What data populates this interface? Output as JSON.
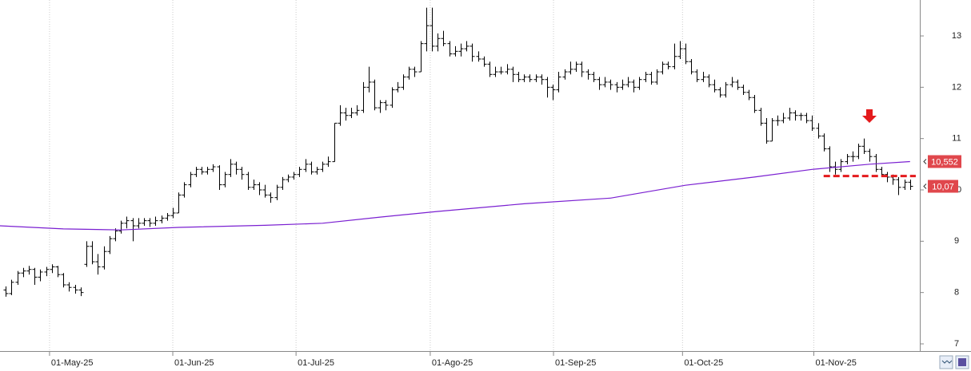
{
  "chart_data": {
    "type": "ohlc",
    "bar_color": "#000000",
    "ylim": [
      6.86,
      13.7
    ],
    "yticks": [
      7,
      8,
      9,
      10,
      11,
      12,
      13
    ],
    "xlim": [
      -1,
      158.7
    ],
    "xticks": [
      {
        "value": 7.6,
        "label": "01-May-25"
      },
      {
        "value": 29,
        "label": "01-Jun-25"
      },
      {
        "value": 50.4,
        "label": "01-Jul-25"
      },
      {
        "value": 73.7,
        "label": "01-Ago-25"
      },
      {
        "value": 95.1,
        "label": "01-Sep-25"
      },
      {
        "value": 117.5,
        "label": "01-Oct-25"
      },
      {
        "value": 140.3,
        "label": "01-Nov-25"
      }
    ],
    "grid": true,
    "ohlc": [
      [
        8.05,
        8.12,
        7.92,
        7.98
      ],
      [
        7.98,
        8.25,
        7.95,
        8.2
      ],
      [
        8.2,
        8.42,
        8.15,
        8.38
      ],
      [
        8.38,
        8.48,
        8.3,
        8.42
      ],
      [
        8.42,
        8.52,
        8.35,
        8.45
      ],
      [
        8.45,
        8.48,
        8.15,
        8.3
      ],
      [
        8.3,
        8.45,
        8.22,
        8.4
      ],
      [
        8.4,
        8.5,
        8.32,
        8.45
      ],
      [
        8.45,
        8.55,
        8.38,
        8.5
      ],
      [
        8.5,
        8.52,
        8.3,
        8.35
      ],
      [
        8.35,
        8.38,
        8.1,
        8.15
      ],
      [
        8.15,
        8.2,
        8.02,
        8.1
      ],
      [
        8.1,
        8.15,
        7.98,
        8.05
      ],
      [
        8.05,
        8.1,
        7.93,
        8.0
      ],
      [
        8.55,
        9.0,
        8.5,
        8.9
      ],
      [
        8.9,
        9.0,
        8.55,
        8.6
      ],
      [
        8.6,
        8.75,
        8.35,
        8.5
      ],
      [
        8.5,
        8.9,
        8.45,
        8.8
      ],
      [
        8.8,
        9.1,
        8.75,
        9.05
      ],
      [
        9.05,
        9.25,
        9.0,
        9.2
      ],
      [
        9.2,
        9.4,
        9.15,
        9.35
      ],
      [
        9.35,
        9.48,
        9.25,
        9.4
      ],
      [
        9.4,
        9.45,
        9.0,
        9.3
      ],
      [
        9.3,
        9.45,
        9.25,
        9.35
      ],
      [
        9.35,
        9.45,
        9.3,
        9.4
      ],
      [
        9.4,
        9.45,
        9.28,
        9.35
      ],
      [
        9.35,
        9.48,
        9.3,
        9.4
      ],
      [
        9.4,
        9.5,
        9.35,
        9.45
      ],
      [
        9.45,
        9.55,
        9.4,
        9.5
      ],
      [
        9.5,
        9.65,
        9.45,
        9.55
      ],
      [
        9.55,
        9.95,
        9.55,
        9.9
      ],
      [
        9.9,
        10.15,
        9.85,
        10.1
      ],
      [
        10.1,
        10.35,
        10.05,
        10.3
      ],
      [
        10.3,
        10.45,
        10.25,
        10.4
      ],
      [
        10.4,
        10.45,
        10.3,
        10.35
      ],
      [
        10.35,
        10.45,
        10.3,
        10.4
      ],
      [
        10.4,
        10.5,
        10.35,
        10.45
      ],
      [
        10.45,
        10.48,
        10.0,
        10.1
      ],
      [
        10.1,
        10.35,
        10.05,
        10.3
      ],
      [
        10.3,
        10.6,
        10.25,
        10.5
      ],
      [
        10.5,
        10.55,
        10.3,
        10.4
      ],
      [
        10.4,
        10.45,
        10.2,
        10.3
      ],
      [
        10.3,
        10.35,
        10.0,
        10.05
      ],
      [
        10.05,
        10.2,
        10.0,
        10.1
      ],
      [
        10.1,
        10.15,
        9.9,
        10.0
      ],
      [
        10.0,
        10.1,
        9.85,
        9.9
      ],
      [
        9.9,
        9.95,
        9.75,
        9.85
      ],
      [
        9.85,
        10.1,
        9.8,
        10.05
      ],
      [
        10.05,
        10.25,
        10.0,
        10.2
      ],
      [
        10.2,
        10.3,
        10.15,
        10.25
      ],
      [
        10.25,
        10.35,
        10.2,
        10.3
      ],
      [
        10.3,
        10.45,
        10.25,
        10.4
      ],
      [
        10.4,
        10.6,
        10.35,
        10.5
      ],
      [
        10.5,
        10.55,
        10.3,
        10.35
      ],
      [
        10.35,
        10.45,
        10.3,
        10.4
      ],
      [
        10.4,
        10.55,
        10.35,
        10.5
      ],
      [
        10.5,
        10.65,
        10.45,
        10.55
      ],
      [
        10.55,
        11.3,
        10.55,
        11.3
      ],
      [
        11.3,
        11.65,
        11.25,
        11.5
      ],
      [
        11.5,
        11.6,
        11.35,
        11.45
      ],
      [
        11.45,
        11.6,
        11.4,
        11.5
      ],
      [
        11.5,
        11.65,
        11.45,
        11.55
      ],
      [
        11.55,
        12.1,
        11.5,
        12.0
      ],
      [
        12.0,
        12.4,
        11.9,
        12.1
      ],
      [
        12.1,
        12.15,
        11.55,
        11.6
      ],
      [
        11.6,
        11.75,
        11.5,
        11.7
      ],
      [
        11.7,
        11.75,
        11.55,
        11.65
      ],
      [
        11.65,
        12.0,
        11.6,
        11.95
      ],
      [
        11.95,
        12.1,
        11.9,
        12.0
      ],
      [
        12.0,
        12.25,
        11.95,
        12.2
      ],
      [
        12.2,
        12.4,
        12.15,
        12.35
      ],
      [
        12.35,
        12.4,
        12.2,
        12.3
      ],
      [
        12.3,
        12.9,
        12.3,
        12.85
      ],
      [
        12.85,
        13.55,
        12.7,
        13.2
      ],
      [
        13.2,
        13.55,
        12.7,
        12.8
      ],
      [
        12.8,
        13.05,
        12.7,
        12.95
      ],
      [
        12.95,
        13.1,
        12.8,
        12.85
      ],
      [
        12.85,
        12.9,
        12.6,
        12.65
      ],
      [
        12.65,
        12.8,
        12.6,
        12.7
      ],
      [
        12.7,
        12.85,
        12.6,
        12.75
      ],
      [
        12.75,
        12.9,
        12.7,
        12.8
      ],
      [
        12.8,
        12.85,
        12.5,
        12.6
      ],
      [
        12.6,
        12.7,
        12.5,
        12.55
      ],
      [
        12.55,
        12.6,
        12.4,
        12.45
      ],
      [
        12.45,
        12.5,
        12.2,
        12.25
      ],
      [
        12.25,
        12.4,
        12.2,
        12.3
      ],
      [
        12.3,
        12.4,
        12.25,
        12.3
      ],
      [
        12.3,
        12.45,
        12.25,
        12.35
      ],
      [
        12.35,
        12.4,
        12.1,
        12.25
      ],
      [
        12.25,
        12.3,
        12.1,
        12.15
      ],
      [
        12.15,
        12.25,
        12.1,
        12.2
      ],
      [
        12.2,
        12.25,
        12.1,
        12.15
      ],
      [
        12.15,
        12.25,
        12.1,
        12.2
      ],
      [
        12.2,
        12.25,
        12.05,
        12.15
      ],
      [
        12.15,
        12.2,
        11.8,
        12.0
      ],
      [
        12.0,
        12.05,
        11.75,
        11.95
      ],
      [
        11.95,
        12.3,
        11.9,
        12.2
      ],
      [
        12.2,
        12.35,
        12.15,
        12.3
      ],
      [
        12.3,
        12.5,
        12.25,
        12.35
      ],
      [
        12.35,
        12.5,
        12.3,
        12.45
      ],
      [
        12.45,
        12.5,
        12.2,
        12.3
      ],
      [
        12.3,
        12.35,
        12.15,
        12.25
      ],
      [
        12.25,
        12.3,
        12.1,
        12.15
      ],
      [
        12.15,
        12.2,
        11.95,
        12.05
      ],
      [
        12.05,
        12.2,
        12.0,
        12.1
      ],
      [
        12.1,
        12.15,
        11.95,
        12.05
      ],
      [
        12.05,
        12.1,
        11.9,
        12.0
      ],
      [
        12.0,
        12.15,
        11.95,
        12.05
      ],
      [
        12.05,
        12.2,
        12.0,
        12.1
      ],
      [
        12.1,
        12.15,
        11.9,
        12.0
      ],
      [
        12.0,
        12.2,
        11.95,
        12.15
      ],
      [
        12.15,
        12.3,
        12.1,
        12.25
      ],
      [
        12.25,
        12.3,
        12.05,
        12.1
      ],
      [
        12.1,
        12.35,
        12.05,
        12.3
      ],
      [
        12.3,
        12.5,
        12.25,
        12.45
      ],
      [
        12.45,
        12.5,
        12.35,
        12.4
      ],
      [
        12.4,
        12.85,
        12.35,
        12.6
      ],
      [
        12.6,
        12.9,
        12.55,
        12.75
      ],
      [
        12.75,
        12.85,
        12.45,
        12.5
      ],
      [
        12.5,
        12.55,
        12.25,
        12.3
      ],
      [
        12.3,
        12.35,
        12.1,
        12.15
      ],
      [
        12.15,
        12.3,
        12.1,
        12.2
      ],
      [
        12.2,
        12.25,
        12.0,
        12.05
      ],
      [
        12.05,
        12.15,
        11.9,
        11.95
      ],
      [
        11.95,
        12.0,
        11.8,
        11.85
      ],
      [
        11.85,
        12.1,
        11.8,
        12.05
      ],
      [
        12.05,
        12.2,
        12.0,
        12.1
      ],
      [
        12.1,
        12.15,
        11.95,
        12.0
      ],
      [
        12.0,
        12.05,
        11.85,
        11.9
      ],
      [
        11.9,
        11.95,
        11.75,
        11.8
      ],
      [
        11.8,
        11.85,
        11.5,
        11.55
      ],
      [
        11.55,
        11.6,
        11.25,
        11.3
      ],
      [
        11.3,
        11.4,
        10.9,
        10.95
      ],
      [
        10.95,
        11.4,
        10.95,
        11.35
      ],
      [
        11.35,
        11.45,
        11.25,
        11.35
      ],
      [
        11.35,
        11.5,
        11.3,
        11.4
      ],
      [
        11.4,
        11.6,
        11.35,
        11.5
      ],
      [
        11.5,
        11.55,
        11.35,
        11.45
      ],
      [
        11.45,
        11.5,
        11.35,
        11.45
      ],
      [
        11.45,
        11.5,
        11.3,
        11.35
      ],
      [
        11.35,
        11.45,
        11.15,
        11.2
      ],
      [
        11.2,
        11.3,
        11.0,
        11.05
      ],
      [
        11.05,
        11.1,
        10.75,
        10.8
      ],
      [
        10.8,
        10.85,
        10.35,
        10.45
      ],
      [
        10.45,
        10.55,
        10.3,
        10.4
      ],
      [
        10.4,
        10.6,
        10.35,
        10.55
      ],
      [
        10.55,
        10.7,
        10.5,
        10.65
      ],
      [
        10.65,
        10.75,
        10.55,
        10.65
      ],
      [
        10.65,
        10.9,
        10.6,
        10.85
      ],
      [
        10.85,
        11.0,
        10.7,
        10.75
      ],
      [
        10.75,
        10.8,
        10.55,
        10.65
      ],
      [
        10.65,
        10.7,
        10.35,
        10.4
      ],
      [
        10.4,
        10.45,
        10.25,
        10.3
      ],
      [
        10.3,
        10.35,
        10.15,
        10.25
      ],
      [
        10.25,
        10.3,
        10.1,
        10.2
      ],
      [
        10.2,
        10.25,
        9.9,
        10.05
      ],
      [
        10.05,
        10.2,
        10.0,
        10.15
      ],
      [
        10.15,
        10.2,
        10.0,
        10.07
      ]
    ],
    "last_close_label": "10,07",
    "label_color": "#e0474c",
    "series": [
      {
        "color": "#7a1fd1",
        "x": [
          -1,
          10,
          20,
          30,
          45,
          55,
          65,
          75,
          90,
          105,
          118,
          130,
          140,
          150,
          157
        ],
        "values": [
          9.3,
          9.24,
          9.22,
          9.27,
          9.31,
          9.35,
          9.47,
          9.58,
          9.73,
          9.84,
          10.09,
          10.25,
          10.4,
          10.5,
          10.552
        ],
        "last_value_label": "10,552"
      }
    ],
    "support": {
      "value": 10.27,
      "x": [
        142,
        158
      ],
      "color": "#e41a1c"
    }
  }
}
